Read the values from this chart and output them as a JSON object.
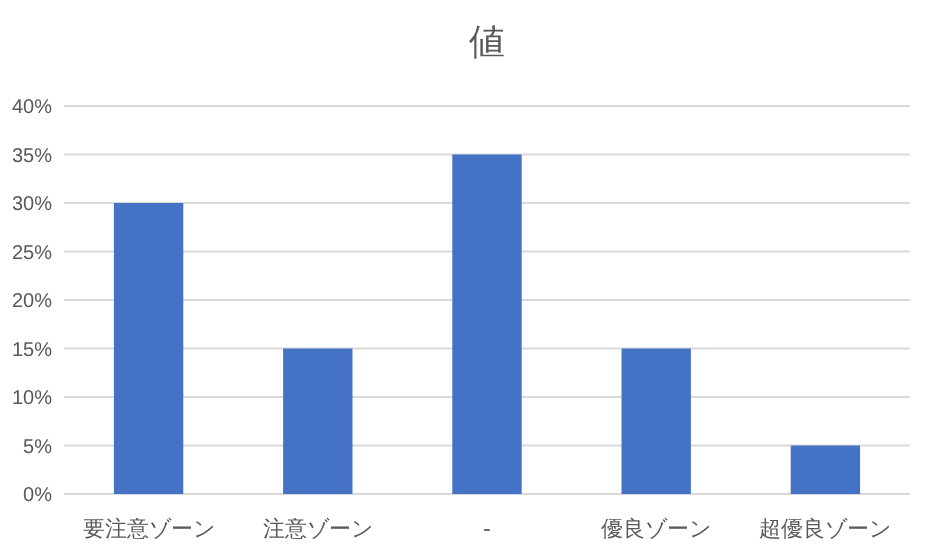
{
  "chart_data": {
    "type": "bar",
    "title": "値",
    "categories": [
      "要注意ゾーン",
      "注意ゾーン",
      "-",
      "優良ゾーン",
      "超優良ゾーン"
    ],
    "values": [
      30,
      15,
      35,
      15,
      5
    ],
    "color": "#4472c4",
    "ylim": [
      0,
      40
    ],
    "yticks": [
      {
        "value": 0,
        "label": "0%"
      },
      {
        "value": 5,
        "label": "5%"
      },
      {
        "value": 10,
        "label": "10%"
      },
      {
        "value": 15,
        "label": "15%"
      },
      {
        "value": 20,
        "label": "20%"
      },
      {
        "value": 25,
        "label": "25%"
      },
      {
        "value": 30,
        "label": "30%"
      },
      {
        "value": 35,
        "label": "35%"
      },
      {
        "value": 40,
        "label": "40%"
      }
    ],
    "grid": "y"
  }
}
